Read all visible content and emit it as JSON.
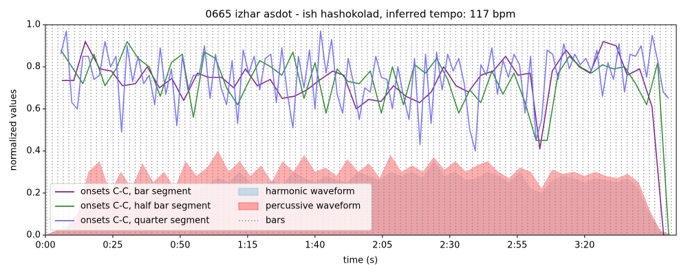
{
  "chart_data": {
    "type": "line",
    "title": "0665 izhar asdot - ish hashokolad, inferred tempo: 117 bpm",
    "x_label": "time (s)",
    "y_label": "normalized values",
    "xlim": [
      0,
      234
    ],
    "ylim": [
      0,
      1
    ],
    "xticks": [
      {
        "value": 0,
        "label": "0:00"
      },
      {
        "value": 25,
        "label": "0:25"
      },
      {
        "value": 50,
        "label": "0:50"
      },
      {
        "value": 75,
        "label": "1:15"
      },
      {
        "value": 100,
        "label": "1:40"
      },
      {
        "value": 125,
        "label": "2:05"
      },
      {
        "value": 150,
        "label": "2:30"
      },
      {
        "value": 175,
        "label": "2:55"
      },
      {
        "value": 200,
        "label": "3:20"
      }
    ],
    "yticks": [
      {
        "value": 0,
        "label": "0.0"
      },
      0.2,
      0.4,
      0.6,
      0.8,
      {
        "value": 1,
        "label": "1.0"
      }
    ],
    "legend": "lower left",
    "series": [
      {
        "name": "onsets C-C, bar segment",
        "color": "#7b1f8a",
        "x": [
          6.1,
          10.5,
          14.8,
          20.2,
          24.5,
          28.6,
          33.4,
          37.8,
          42.3,
          46.9,
          51.3,
          56.4,
          60.5,
          65.3,
          69.9,
          74.2,
          78.6,
          83.4,
          87.8,
          92.3,
          96.9,
          101.5,
          106.6,
          110.7,
          115.3,
          119.9,
          124.5,
          129.1,
          133.7,
          138.8,
          143.1,
          147.7,
          152.3,
          156.9,
          161.5,
          166.1,
          170.7,
          175.3,
          179.8,
          183.4,
          188.0,
          193.1,
          198.0,
          202.0,
          206.9,
          211.7,
          215.8,
          220.4,
          225.0,
          229.3
        ],
        "values": [
          0.735,
          0.735,
          0.92,
          0.79,
          0.78,
          0.71,
          0.72,
          0.8,
          0.7,
          0.745,
          0.64,
          0.77,
          0.75,
          0.75,
          0.7,
          0.79,
          0.71,
          0.74,
          0.65,
          0.66,
          0.69,
          0.735,
          0.78,
          0.76,
          0.6,
          0.645,
          0.635,
          0.71,
          0.66,
          0.63,
          0.68,
          0.8,
          0.71,
          0.68,
          0.76,
          0.78,
          0.85,
          0.76,
          0.77,
          0.41,
          0.78,
          0.88,
          0.8,
          0.77,
          0.92,
          0.9,
          0.76,
          0.79,
          0.61,
          0.0
        ]
      },
      {
        "name": "onsets C-C, half bar segment",
        "color": "#2e8b2e",
        "x": [
          5.7,
          9.8,
          13.9,
          18,
          22.1,
          26.2,
          30.3,
          34.4,
          38.5,
          42.6,
          46.7,
          50.8,
          54.9,
          59,
          63.1,
          67.2,
          71.3,
          75.4,
          79.5,
          83.6,
          87.7,
          91.8,
          95.9,
          100,
          104.1,
          108.2,
          112.3,
          116.4,
          120.5,
          124.6,
          128.7,
          132.8,
          136.9,
          141,
          145.1,
          149.2,
          153.3,
          157.4,
          161.5,
          165.6,
          169.7,
          173.8,
          177.9,
          182,
          186.1,
          190.2,
          194.3,
          198.4,
          202.5,
          206.6,
          210.7,
          214.8,
          218.9,
          223,
          227.1,
          231.2
        ],
        "values": [
          0.88,
          0.8,
          0.72,
          0.86,
          0.71,
          0.79,
          0.92,
          0.84,
          0.8,
          0.66,
          0.82,
          0.86,
          0.56,
          0.87,
          0.84,
          0.7,
          0.62,
          0.73,
          0.83,
          0.8,
          0.76,
          0.87,
          0.65,
          0.82,
          0.58,
          0.79,
          0.73,
          0.72,
          0.78,
          0.58,
          0.8,
          0.62,
          0.81,
          0.77,
          0.84,
          0.74,
          0.58,
          0.69,
          0.63,
          0.78,
          0.67,
          0.77,
          0.63,
          0.45,
          0.45,
          0.77,
          0.85,
          0.8,
          0.77,
          0.81,
          0.79,
          0.8,
          0.72,
          0.62,
          0.82,
          0.0
        ]
      },
      {
        "name": "onsets C-C, quarter segment",
        "color": "#6b6bf5",
        "x": [
          5.7,
          7.75,
          9.8,
          11.85,
          13.9,
          15.95,
          18,
          20.05,
          22.1,
          24.15,
          26.2,
          28.25,
          30.3,
          32.35,
          34.4,
          36.45,
          38.5,
          40.55,
          42.6,
          44.65,
          46.7,
          48.75,
          50.8,
          52.85,
          54.9,
          56.95,
          59,
          61.05,
          63.1,
          65.15,
          67.2,
          69.25,
          71.3,
          73.35,
          75.4,
          77.45,
          79.5,
          81.55,
          83.6,
          85.65,
          87.7,
          89.75,
          91.8,
          93.85,
          95.9,
          97.95,
          100,
          102.05,
          104.1,
          106.15,
          108.2,
          110.25,
          112.3,
          114.35,
          116.4,
          118.45,
          120.5,
          122.55,
          124.6,
          126.65,
          128.7,
          130.75,
          132.8,
          134.85,
          136.9,
          138.95,
          141,
          143.05,
          145.1,
          147.15,
          149.2,
          151.25,
          153.3,
          155.35,
          157.4,
          159.45,
          161.5,
          163.55,
          165.6,
          167.65,
          169.7,
          171.75,
          173.8,
          175.85,
          177.9,
          179.95,
          182,
          184.05,
          186.1,
          188.15,
          190.2,
          192.25,
          194.3,
          196.35,
          198.4,
          200.45,
          202.5,
          204.55,
          206.6,
          208.65,
          210.7,
          212.75,
          214.8,
          216.85,
          218.9,
          220.95,
          223,
          225.05,
          227.1,
          229.15,
          231.2
        ],
        "values": [
          0.86,
          0.97,
          0.63,
          0.6,
          0.85,
          0.85,
          0.74,
          0.76,
          0.92,
          0.8,
          0.85,
          0.49,
          0.9,
          0.73,
          0.85,
          0.72,
          0.76,
          0.62,
          0.89,
          0.67,
          0.79,
          0.52,
          0.85,
          0.69,
          0.76,
          0.76,
          0.9,
          0.65,
          0.86,
          0.7,
          0.62,
          0.83,
          0.53,
          0.88,
          0.77,
          0.85,
          0.69,
          0.84,
          0.86,
          0.63,
          0.89,
          0.67,
          0.51,
          0.85,
          0.7,
          0.88,
          0.6,
          0.97,
          0.77,
          0.93,
          0.67,
          0.58,
          0.84,
          0.72,
          0.55,
          0.7,
          0.68,
          0.85,
          0.75,
          0.74,
          0.6,
          0.8,
          0.66,
          0.55,
          0.84,
          0.43,
          0.86,
          0.53,
          0.87,
          0.69,
          0.86,
          0.78,
          0.84,
          0.72,
          0.5,
          0.4,
          0.81,
          0.76,
          0.89,
          0.67,
          0.83,
          0.75,
          0.86,
          0.81,
          0.58,
          0.85,
          0.45,
          0.55,
          0.88,
          0.86,
          0.74,
          0.91,
          0.79,
          0.86,
          0.81,
          0.84,
          0.78,
          0.88,
          0.66,
          0.82,
          0.74,
          0.91,
          0.68,
          0.86,
          0.85,
          0.9,
          0.75,
          0.95,
          0.83,
          0.68,
          0.65
        ]
      }
    ],
    "areas": [
      {
        "name": "harmonic waveform",
        "color": "#9ecae1",
        "x": [
          0,
          4,
          8,
          12,
          16,
          20,
          24,
          28,
          32,
          36,
          40,
          44,
          48,
          52,
          56,
          60,
          64,
          68,
          72,
          76,
          80,
          84,
          88,
          92,
          96,
          100,
          104,
          108,
          112,
          116,
          120,
          124,
          128,
          132,
          136,
          140,
          144,
          148,
          152,
          156,
          160,
          164,
          168,
          172,
          176,
          180,
          184,
          188,
          192,
          196,
          200,
          204,
          208,
          212,
          216,
          220,
          224,
          228,
          232
        ],
        "values": [
          0,
          0.02,
          0.05,
          0.1,
          0.15,
          0.18,
          0.17,
          0.2,
          0.18,
          0.22,
          0.2,
          0.23,
          0.2,
          0.22,
          0.21,
          0.24,
          0.27,
          0.25,
          0.3,
          0.25,
          0.22,
          0.26,
          0.24,
          0.3,
          0.27,
          0.25,
          0.28,
          0.26,
          0.25,
          0.3,
          0.28,
          0.26,
          0.3,
          0.28,
          0.3,
          0.27,
          0.35,
          0.28,
          0.3,
          0.26,
          0.27,
          0.3,
          0.28,
          0.25,
          0.3,
          0.22,
          0.2,
          0.26,
          0.28,
          0.27,
          0.25,
          0.27,
          0.26,
          0.25,
          0.27,
          0.22,
          0.1,
          0.02,
          0
        ]
      },
      {
        "name": "percussive waveform",
        "color": "#ff6b6b",
        "x": [
          0,
          4,
          8,
          12,
          16,
          20,
          24,
          28,
          32,
          36,
          40,
          44,
          48,
          52,
          56,
          60,
          64,
          68,
          72,
          76,
          80,
          84,
          88,
          92,
          96,
          100,
          104,
          108,
          112,
          116,
          120,
          124,
          128,
          132,
          136,
          140,
          144,
          148,
          152,
          156,
          160,
          164,
          168,
          172,
          176,
          180,
          184,
          188,
          192,
          196,
          200,
          204,
          208,
          212,
          216,
          220,
          224,
          228,
          232
        ],
        "values": [
          0,
          0.02,
          0.03,
          0.1,
          0.3,
          0.35,
          0.2,
          0.3,
          0.22,
          0.34,
          0.25,
          0.3,
          0.22,
          0.35,
          0.28,
          0.32,
          0.4,
          0.3,
          0.35,
          0.28,
          0.33,
          0.25,
          0.35,
          0.3,
          0.38,
          0.3,
          0.32,
          0.28,
          0.36,
          0.3,
          0.34,
          0.27,
          0.38,
          0.3,
          0.33,
          0.3,
          0.37,
          0.31,
          0.35,
          0.3,
          0.33,
          0.35,
          0.3,
          0.27,
          0.32,
          0.3,
          0.22,
          0.31,
          0.29,
          0.3,
          0.28,
          0.3,
          0.28,
          0.27,
          0.29,
          0.25,
          0.12,
          0.02,
          0
        ]
      }
    ],
    "bars": {
      "name": "bars",
      "color": "#888888",
      "x": [
        0.5,
        2.55,
        4.6,
        6.65,
        8.7,
        10.75,
        12.8,
        14.85,
        16.9,
        18.95,
        21,
        23.05,
        25.1,
        27.15,
        29.2,
        31.25,
        33.3,
        35.35,
        37.4,
        39.45,
        41.5,
        43.55,
        45.6,
        47.65,
        49.7,
        51.75,
        53.8,
        55.85,
        57.9,
        59.95,
        62,
        64.05,
        66.1,
        68.15,
        70.2,
        72.25,
        74.3,
        76.35,
        78.4,
        80.45,
        82.5,
        84.55,
        86.6,
        88.65,
        90.7,
        92.75,
        94.8,
        96.85,
        98.9,
        100.95,
        103,
        105.05,
        107.1,
        109.15,
        111.2,
        113.25,
        115.3,
        117.35,
        119.4,
        121.45,
        123.5,
        125.55,
        127.6,
        129.65,
        131.7,
        133.75,
        135.8,
        137.85,
        139.9,
        141.95,
        144,
        146.05,
        148.1,
        150.15,
        152.2,
        154.25,
        156.3,
        158.35,
        160.4,
        162.45,
        164.5,
        166.55,
        168.6,
        170.65,
        172.7,
        174.75,
        176.8,
        178.85,
        180.9,
        182.95,
        185,
        187.05,
        189.1,
        191.15,
        193.2,
        195.25,
        197.3,
        199.35,
        201.4,
        203.45,
        205.5,
        207.55,
        209.6,
        211.65,
        213.7,
        215.75,
        217.8,
        219.85,
        221.9,
        223.95,
        226,
        228.05,
        230.1,
        232.15
      ]
    }
  }
}
